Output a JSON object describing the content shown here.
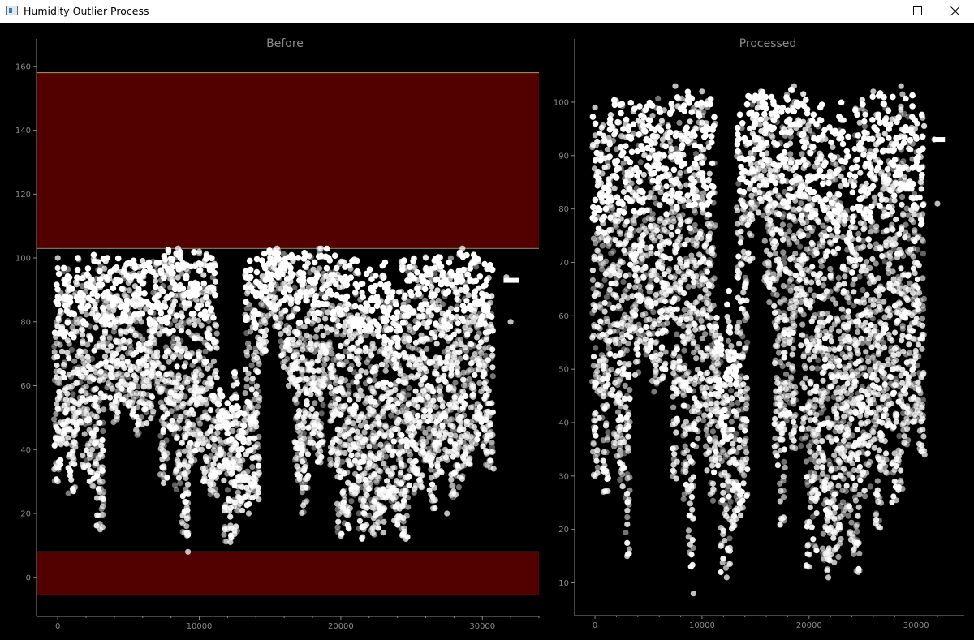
{
  "window": {
    "title": "Humidity Outlier Process",
    "icon": "app-window-icon",
    "controls": [
      "minimize-icon",
      "maximize-icon",
      "close-icon"
    ]
  },
  "colors": {
    "background": "#000000",
    "outlier_band": "#520000",
    "band_edge": "#c8b878",
    "points": "#ffffff",
    "axis": "#8a8a8a"
  },
  "chart_data": [
    {
      "type": "scatter",
      "title": "Before",
      "xlabel": "",
      "ylabel": "",
      "xlim": [
        -1500,
        34000
      ],
      "ylim": [
        -12,
        163
      ],
      "x_ticks": [
        0,
        10000,
        20000,
        30000
      ],
      "y_ticks": [
        0,
        20,
        40,
        60,
        80,
        100,
        120,
        140,
        160
      ],
      "grid": false,
      "outlier_bands": [
        {
          "from": 103,
          "to": 158
        },
        {
          "from": -5.5,
          "to": 8
        }
      ],
      "series": [
        {
          "sample_points": [
            [
              0,
              100
            ],
            [
              0,
              30
            ],
            [
              3000,
              15
            ],
            [
              6000,
              48
            ],
            [
              8500,
              103
            ],
            [
              9200,
              8
            ],
            [
              10000,
              102
            ],
            [
              12200,
              11
            ],
            [
              13500,
              20
            ],
            [
              15500,
              103
            ],
            [
              17000,
              95
            ],
            [
              18600,
              103
            ],
            [
              20000,
              13
            ],
            [
              21500,
              12
            ],
            [
              23000,
              14
            ],
            [
              24600,
              12
            ],
            [
              26000,
              100
            ],
            [
              27500,
              20
            ],
            [
              28600,
              103
            ],
            [
              30800,
              34
            ],
            [
              31700,
              94
            ],
            [
              32000,
              80
            ]
          ],
          "columns": [
            [
              0,
              98,
              30
            ],
            [
              500,
              97,
              40
            ],
            [
              1000,
              96,
              26
            ],
            [
              1500,
              100,
              45
            ],
            [
              2000,
              101,
              33
            ],
            [
              2500,
              101,
              28
            ],
            [
              3000,
              101,
              15
            ],
            [
              3500,
              101,
              55
            ],
            [
              4000,
              101,
              47
            ],
            [
              4500,
              100,
              55
            ],
            [
              5000,
              101,
              52
            ],
            [
              5500,
              101,
              44
            ],
            [
              6000,
              101,
              50
            ],
            [
              6500,
              100,
              48
            ],
            [
              7000,
              100,
              58
            ],
            [
              7500,
              101,
              29
            ],
            [
              8000,
              103,
              45
            ],
            [
              8500,
              103,
              25
            ],
            [
              9000,
              102,
              13
            ],
            [
              9500,
              102,
              35
            ],
            [
              10000,
              102,
              40
            ],
            [
              10500,
              102,
              30
            ],
            [
              11000,
              101,
              25
            ],
            [
              11500,
              60,
              30
            ],
            [
              12000,
              55,
              11
            ],
            [
              12500,
              65,
              13
            ],
            [
              13000,
              55,
              20
            ],
            [
              13500,
              101,
              22
            ],
            [
              14000,
              101,
              24
            ],
            [
              14500,
              102,
              70
            ],
            [
              15000,
              103,
              80
            ],
            [
              15500,
              103,
              78
            ],
            [
              16000,
              102,
              65
            ],
            [
              16500,
              101,
              60
            ],
            [
              17000,
              101,
              30
            ],
            [
              17500,
              102,
              20
            ],
            [
              18000,
              102,
              40
            ],
            [
              18500,
              103,
              35
            ],
            [
              19000,
              103,
              60
            ],
            [
              19500,
              102,
              35
            ],
            [
              20000,
              100,
              13
            ],
            [
              20500,
              98,
              15
            ],
            [
              21000,
              100,
              25
            ],
            [
              21500,
              95,
              12
            ],
            [
              22000,
              98,
              14
            ],
            [
              22500,
              96,
              13
            ],
            [
              23000,
              100,
              17
            ],
            [
              23500,
              94,
              22
            ],
            [
              24000,
              90,
              15
            ],
            [
              24500,
              100,
              12
            ],
            [
              25000,
              101,
              25
            ],
            [
              25500,
              96,
              28
            ],
            [
              26000,
              101,
              35
            ],
            [
              26500,
              101,
              20
            ],
            [
              27000,
              101,
              30
            ],
            [
              27500,
              100,
              35
            ],
            [
              28000,
              102,
              25
            ],
            [
              28500,
              103,
              27
            ],
            [
              29000,
              101,
              35
            ],
            [
              29500,
              102,
              40
            ],
            [
              30000,
              101,
              40
            ],
            [
              30500,
              98,
              34
            ]
          ]
        }
      ]
    },
    {
      "type": "scatter",
      "title": "Processed",
      "xlabel": "",
      "ylabel": "",
      "xlim": [
        -1900,
        34500
      ],
      "ylim": [
        4,
        108.5
      ],
      "x_ticks": [
        0,
        10000,
        20000,
        30000
      ],
      "y_ticks": [
        10,
        20,
        30,
        40,
        50,
        60,
        70,
        80,
        90,
        100
      ],
      "grid": false,
      "series": [
        {
          "sample_points": [
            [
              0,
              99
            ],
            [
              0,
              30
            ],
            [
              3000,
              15
            ],
            [
              6000,
              48
            ],
            [
              7500,
              103
            ],
            [
              9200,
              8
            ],
            [
              10000,
              102
            ],
            [
              12300,
              11
            ],
            [
              15500,
              102
            ],
            [
              18600,
              103
            ],
            [
              20000,
              13
            ],
            [
              21800,
              11
            ],
            [
              24600,
              12
            ],
            [
              26000,
              102
            ],
            [
              28600,
              103
            ],
            [
              30800,
              34
            ],
            [
              31700,
              93
            ],
            [
              32000,
              81
            ]
          ],
          "columns": [
            [
              0,
              98,
              30
            ],
            [
              500,
              97,
              40
            ],
            [
              1000,
              96,
              26
            ],
            [
              1500,
              100,
              45
            ],
            [
              2000,
              101,
              33
            ],
            [
              2500,
              101,
              28
            ],
            [
              3000,
              101,
              15
            ],
            [
              3500,
              101,
              55
            ],
            [
              4000,
              101,
              47
            ],
            [
              4500,
              100,
              55
            ],
            [
              5000,
              101,
              52
            ],
            [
              5500,
              101,
              44
            ],
            [
              6000,
              101,
              50
            ],
            [
              6500,
              100,
              48
            ],
            [
              7000,
              100,
              58
            ],
            [
              7500,
              101,
              29
            ],
            [
              8000,
              103,
              45
            ],
            [
              8500,
              103,
              25
            ],
            [
              9000,
              102,
              13
            ],
            [
              9500,
              102,
              35
            ],
            [
              10000,
              102,
              40
            ],
            [
              10500,
              102,
              30
            ],
            [
              11000,
              101,
              25
            ],
            [
              11500,
              60,
              30
            ],
            [
              12000,
              55,
              11
            ],
            [
              12500,
              65,
              13
            ],
            [
              13000,
              55,
              20
            ],
            [
              13500,
              101,
              22
            ],
            [
              14000,
              101,
              24
            ],
            [
              14500,
              102,
              70
            ],
            [
              15000,
              102,
              80
            ],
            [
              15500,
              102,
              78
            ],
            [
              16000,
              102,
              65
            ],
            [
              16500,
              101,
              60
            ],
            [
              17000,
              101,
              30
            ],
            [
              17500,
              102,
              20
            ],
            [
              18000,
              102,
              40
            ],
            [
              18500,
              103,
              35
            ],
            [
              19000,
              102,
              60
            ],
            [
              19500,
              102,
              35
            ],
            [
              20000,
              100,
              13
            ],
            [
              20500,
              98,
              15
            ],
            [
              21000,
              100,
              25
            ],
            [
              21500,
              95,
              12
            ],
            [
              22000,
              98,
              14
            ],
            [
              22500,
              96,
              13
            ],
            [
              23000,
              100,
              17
            ],
            [
              23500,
              94,
              22
            ],
            [
              24000,
              90,
              15
            ],
            [
              24500,
              100,
              12
            ],
            [
              25000,
              101,
              25
            ],
            [
              25500,
              96,
              28
            ],
            [
              26000,
              102,
              35
            ],
            [
              26500,
              102,
              20
            ],
            [
              27000,
              101,
              30
            ],
            [
              27500,
              100,
              35
            ],
            [
              28000,
              102,
              25
            ],
            [
              28500,
              103,
              27
            ],
            [
              29000,
              101,
              35
            ],
            [
              29500,
              102,
              40
            ],
            [
              30000,
              101,
              40
            ],
            [
              30500,
              98,
              34
            ]
          ]
        }
      ]
    }
  ]
}
